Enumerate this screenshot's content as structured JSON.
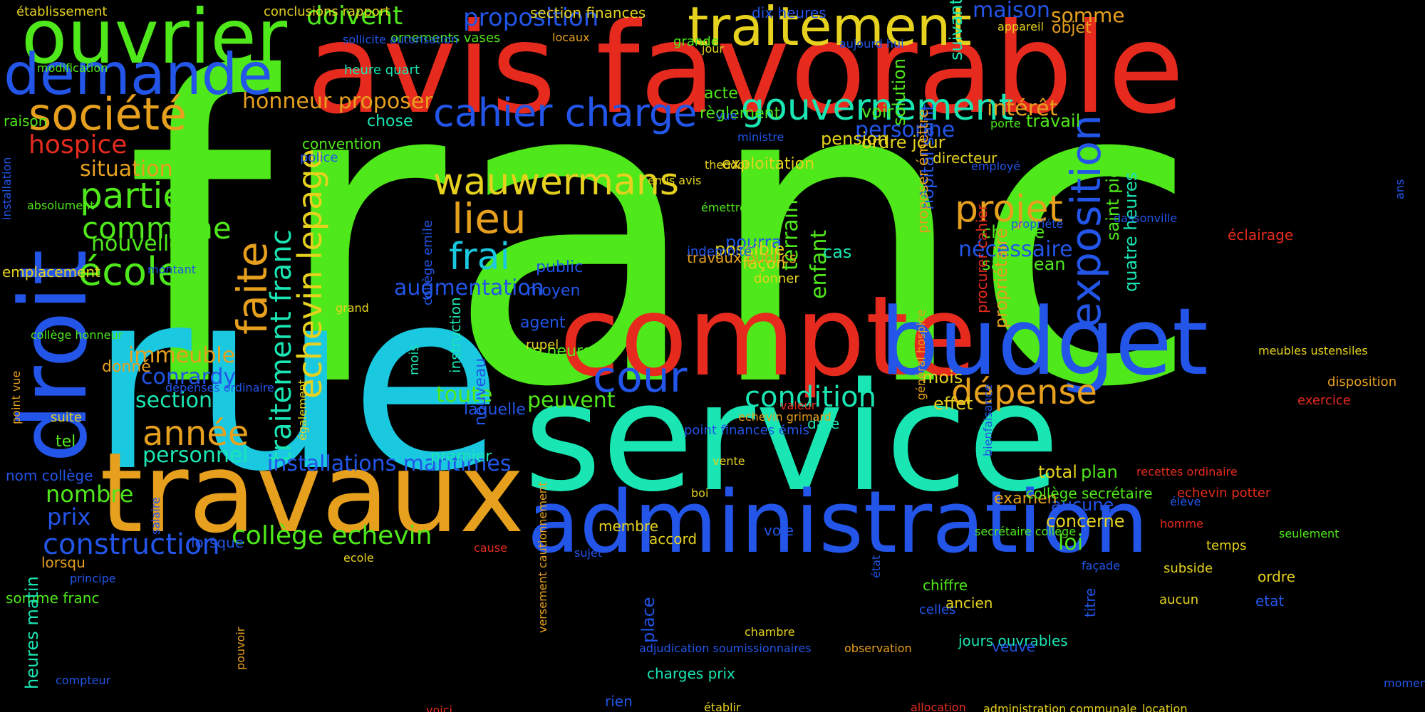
{
  "colors": {
    "background": "#000000",
    "green": "#4fe81a",
    "cyan": "#1ac8e0",
    "red": "#e62b1e",
    "teal": "#1ae6b4",
    "blue": "#2255e8",
    "orange": "#e6a01e",
    "yellow": "#e6d21e"
  },
  "words": [
    "franc",
    "rue",
    "service",
    "avis favorable",
    "travaux",
    "compte",
    "budget",
    "droit",
    "administration",
    "ouvrier",
    "demande",
    "traitement",
    "société",
    "gouvernement",
    "cahier charge",
    "exposition",
    "wauwermans",
    "projet",
    "echevin lepage",
    "traitement franc",
    "faite",
    "lieu",
    "frai",
    "cour",
    "année",
    "dépense",
    "condition",
    "partie",
    "école",
    "commune",
    "hospice",
    "situation",
    "nouvelle",
    "immeuble",
    "conrardy",
    "section",
    "personnel",
    "construction",
    "collège echevin",
    "installations maritimes",
    "doivent",
    "proposition",
    "honneur proposer",
    "chose",
    "intérêt",
    "personne",
    "maison",
    "somme",
    "nécessaire",
    "augmentation",
    "toute",
    "peuvent",
    "terrain",
    "enfant",
    "prix",
    "nombre",
    "loi",
    "aucune",
    "concerne",
    "examen",
    "plan",
    "total",
    "effet",
    "mois",
    "chaque",
    "saint jean",
    "ordre jour",
    "directeur",
    "travail",
    "porte",
    "objet",
    "appareil",
    "suivant",
    "voir",
    "solution",
    "pension",
    "cas",
    "pourra",
    "possible",
    "façon",
    "donner",
    "hôpital saint",
    "procurer cahier",
    "proposer émettre",
    "propriétaire",
    "saint pierre",
    "quatre heures",
    "éclairage",
    "disposition",
    "exercice",
    "date",
    "point finances émis",
    "echevin grimard",
    "valeur",
    "laquelle",
    "nouveau",
    "premier",
    "boi",
    "vente",
    "public",
    "moyen",
    "agent",
    "onze heure",
    "rupel",
    "travaux publics",
    "indemnité",
    "émettre avis",
    "exploitation",
    "theodor",
    "émis avis",
    "règlement",
    "acte",
    "grande",
    "jour",
    "aujourd hui",
    "dix heures",
    "section finances",
    "conclusions rapport",
    "établissement",
    "ornements vases",
    "locaux",
    "sollicite autorisation",
    "modification",
    "raison",
    "convention",
    "police",
    "heure quart",
    "vue",
    "ministre",
    "absolument",
    "installation",
    "montant",
    "emplacement",
    "grand",
    "collège honneur",
    "donné",
    "dépenses ordinaire",
    "point vue",
    "suite",
    "tel",
    "également",
    "nom collège",
    "salaire",
    "lorsque",
    "lorsqu",
    "principe",
    "somme franc",
    "heures matin",
    "compteur",
    "pouvoir",
    "ecole",
    "sujet",
    "cause",
    "versement cautionnement",
    "voici",
    "rien",
    "place",
    "charges prix",
    "adjudication soumissionnaires",
    "établir",
    "allocation",
    "administration communale",
    "location",
    "moment",
    "chambre",
    "observation",
    "celles",
    "jours ouvrables",
    "veuve",
    "ancien",
    "chiffre",
    "état",
    "titre",
    "façade",
    "subside",
    "aucun",
    "etat",
    "ordre",
    "temps",
    "homme",
    "élève",
    "echevin potter",
    "recettes ordinaire",
    "secrétaire collège",
    "seulement",
    "collège secrétaire",
    "voie",
    "membre",
    "accord",
    "bienfaisance",
    "général hospice",
    "employé",
    "propriété",
    "dassonville",
    "ans",
    "meubles ustensiles",
    "instruction",
    "collège emile",
    "mois"
  ]
}
